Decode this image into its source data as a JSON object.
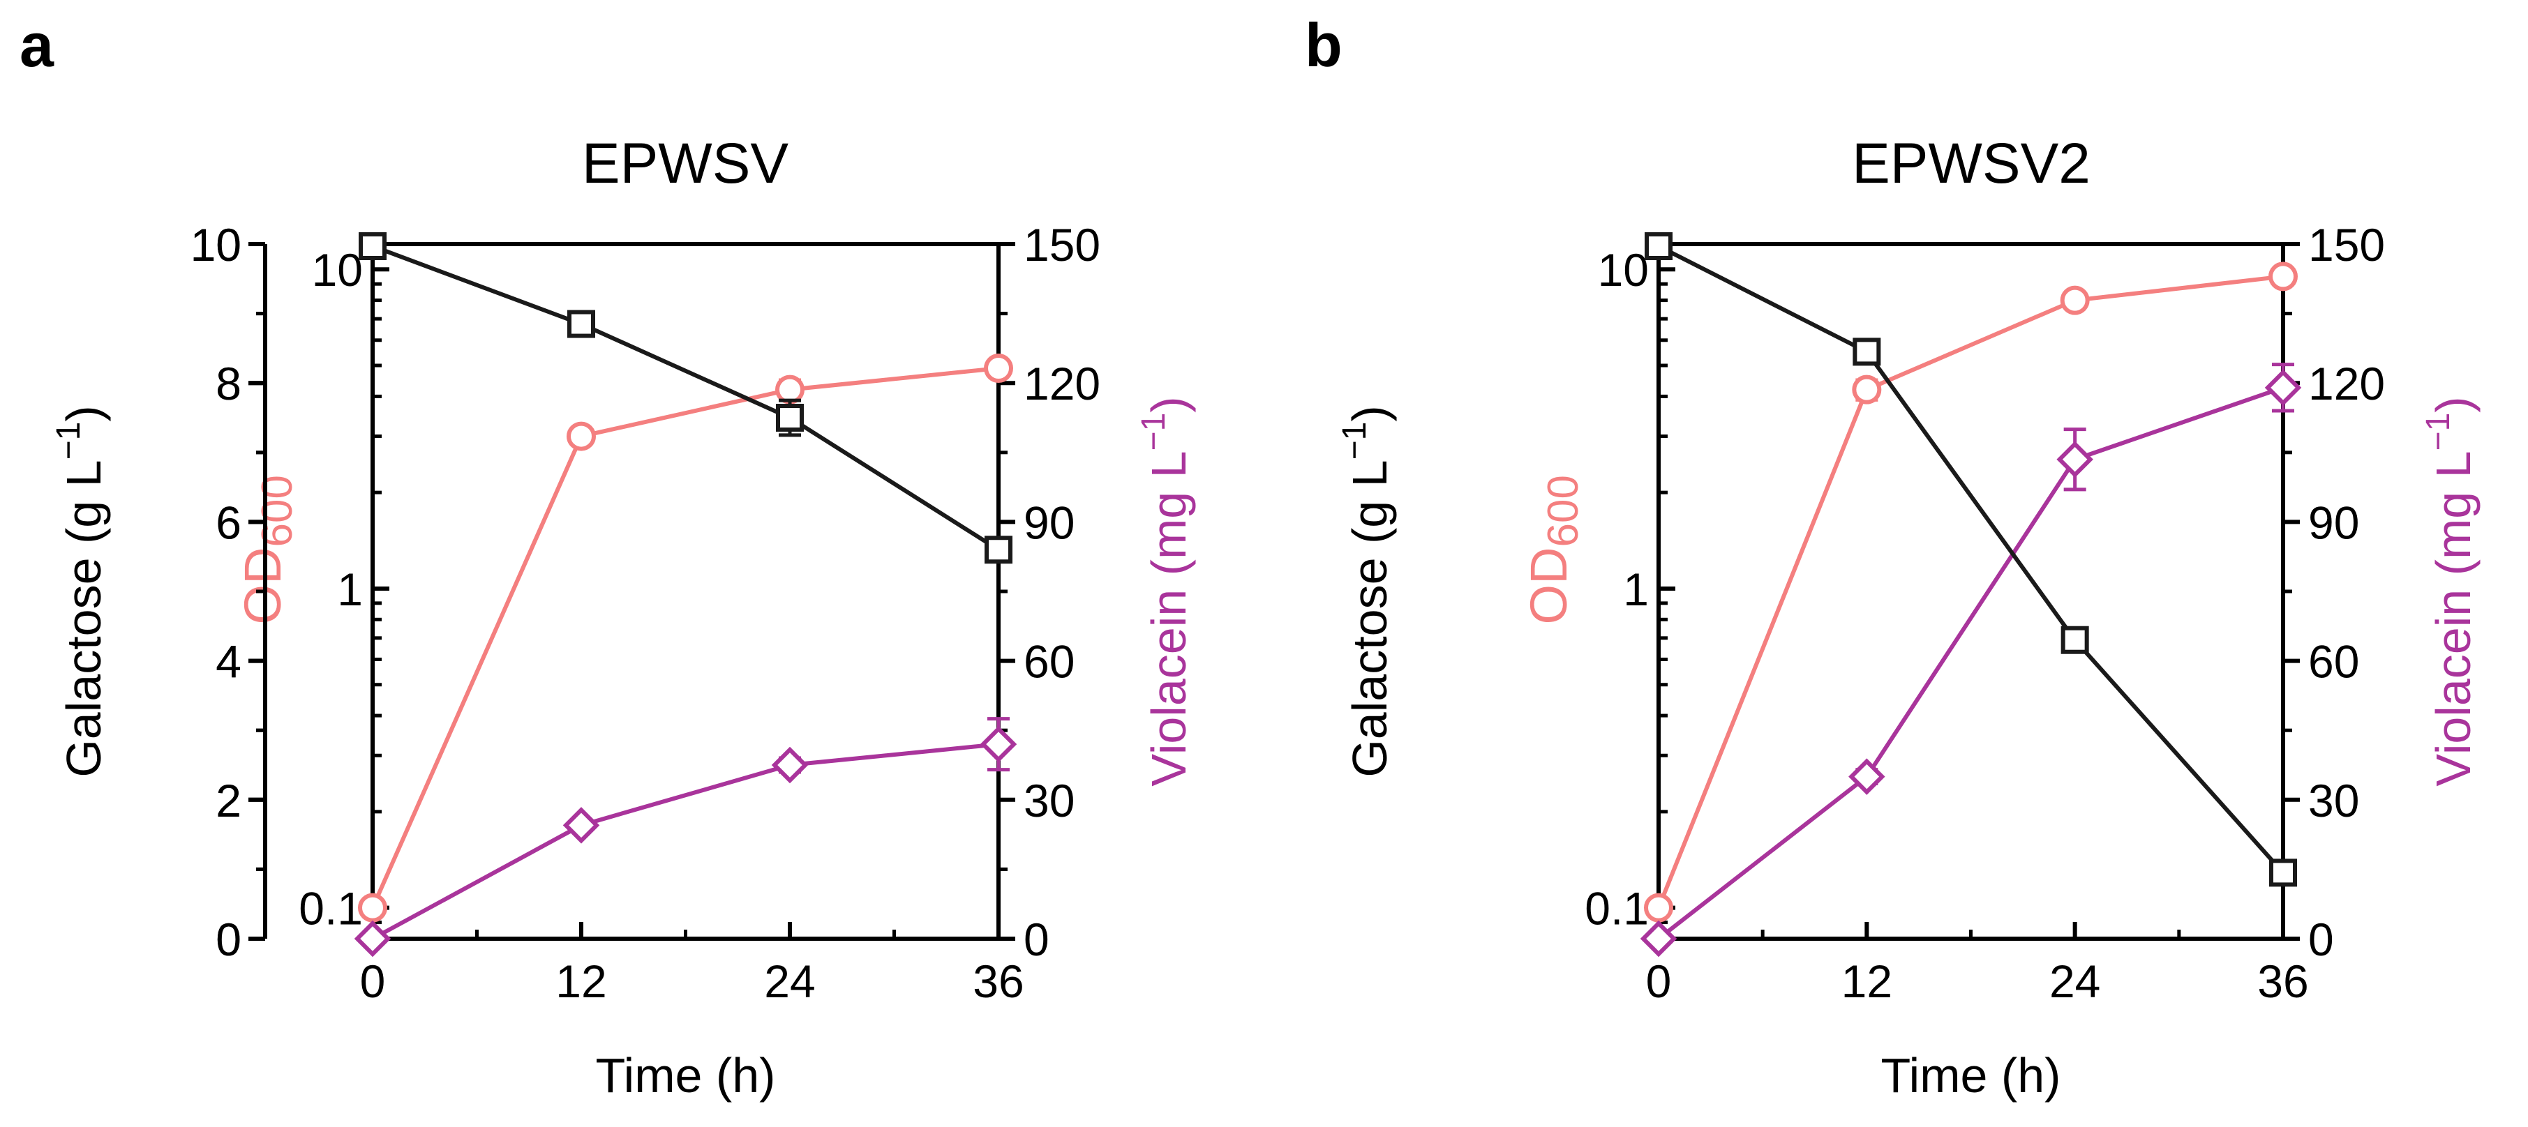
{
  "colors": {
    "axis": "#000000",
    "galactose": "#1a1a1a",
    "od600": "#f47f7f",
    "violacein": "#a9349b"
  },
  "chart_data": [
    {
      "panel_label": "a",
      "type": "line",
      "title": "EPWSV",
      "xlabel": "Time (h)",
      "x": [
        0,
        12,
        24,
        36
      ],
      "xlim": [
        0,
        36
      ],
      "x_ticks": [
        0,
        12,
        24,
        36
      ],
      "x_tick_labels": [
        "0",
        "12",
        "24",
        "36"
      ],
      "y_left": {
        "label": "Galactose (g L",
        "exp": "−1",
        "close": ")",
        "range": [
          0,
          10
        ],
        "ticks": [
          0,
          2,
          4,
          6,
          8,
          10
        ],
        "tick_labels": [
          "0",
          "2",
          "4",
          "6",
          "8",
          "10"
        ]
      },
      "y_od": {
        "label": "OD",
        "sub": "600",
        "scale": "log",
        "range": [
          0.08,
          12
        ],
        "ticks": [
          0.1,
          1,
          10
        ],
        "tick_labels": [
          "0.1",
          "1",
          "10"
        ]
      },
      "y_right": {
        "label": "Violacein (mg L",
        "exp": "−1",
        "close": ")",
        "range": [
          0,
          150
        ],
        "ticks": [
          0,
          30,
          60,
          90,
          120,
          150
        ],
        "tick_labels": [
          "0",
          "30",
          "60",
          "90",
          "120",
          "150"
        ]
      },
      "series": [
        {
          "name": "Galactose",
          "axis": "left",
          "marker": "square",
          "values": [
            9.97,
            8.85,
            7.5,
            5.6
          ],
          "errors": [
            0.05,
            0.15,
            0.25,
            0.1
          ]
        },
        {
          "name": "OD600",
          "axis": "od",
          "marker": "circle",
          "values": [
            0.1,
            3.0,
            4.2,
            4.9
          ],
          "errors": [
            0,
            0,
            0.3,
            0.2
          ]
        },
        {
          "name": "Violacein",
          "axis": "right",
          "marker": "diamond",
          "values": [
            0,
            24.5,
            37.5,
            42
          ],
          "errors": [
            0,
            0.8,
            1.5,
            5.5
          ]
        }
      ]
    },
    {
      "panel_label": "b",
      "type": "line",
      "title": "EPWSV2",
      "xlabel": "Time (h)",
      "x": [
        0,
        12,
        24,
        36
      ],
      "xlim": [
        0,
        36
      ],
      "x_ticks": [
        0,
        12,
        24,
        36
      ],
      "x_tick_labels": [
        "0",
        "12",
        "24",
        "36"
      ],
      "y_left": {
        "label": "Galactose (g L",
        "exp": "−1",
        "close": ")",
        "range": [
          0,
          10
        ],
        "ticks": [
          0,
          2,
          4,
          6,
          8,
          10
        ],
        "tick_labels": [
          "0",
          "2",
          "4",
          "6",
          "8",
          "10"
        ]
      },
      "y_od": {
        "label": "OD",
        "sub": "600",
        "scale": "log",
        "range": [
          0.08,
          12
        ],
        "ticks": [
          0.1,
          1,
          10
        ],
        "tick_labels": [
          "0.1",
          "1",
          "10"
        ]
      },
      "y_right": {
        "label": "Violacein (mg L",
        "exp": "−1",
        "close": ")",
        "range": [
          0,
          150
        ],
        "ticks": [
          0,
          30,
          60,
          90,
          120,
          150
        ],
        "tick_labels": [
          "0",
          "30",
          "60",
          "90",
          "120",
          "150"
        ]
      },
      "series": [
        {
          "name": "Galactose",
          "axis": "left",
          "marker": "square",
          "values": [
            9.97,
            8.45,
            4.3,
            0.95
          ],
          "errors": [
            0.05,
            0.15,
            0.1,
            0.05
          ]
        },
        {
          "name": "OD600",
          "axis": "od",
          "marker": "circle",
          "values": [
            0.1,
            4.2,
            8.0,
            9.5
          ],
          "errors": [
            0,
            0.3,
            0.4,
            0.4
          ]
        },
        {
          "name": "Violacein",
          "axis": "right",
          "marker": "diamond",
          "values": [
            0,
            35,
            103.5,
            119
          ],
          "errors": [
            0,
            1.5,
            6.5,
            5
          ]
        }
      ]
    }
  ]
}
